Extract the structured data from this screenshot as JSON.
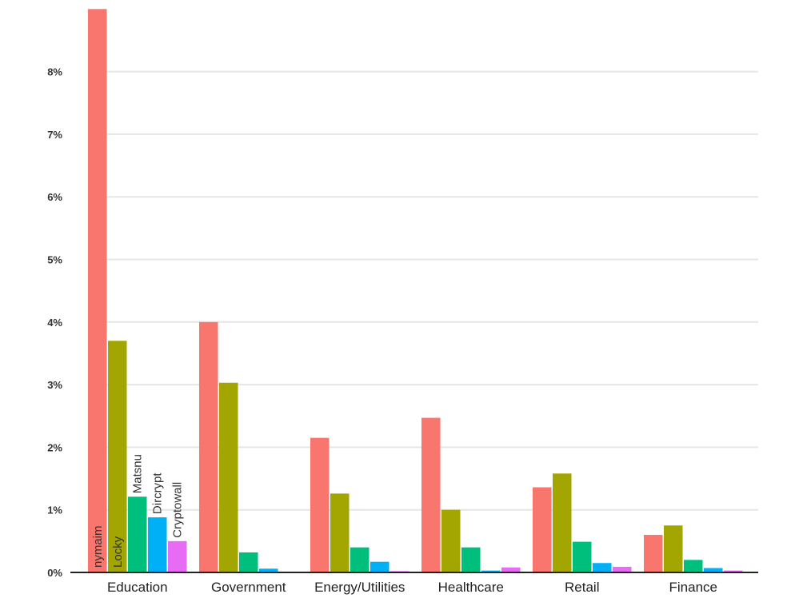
{
  "chart_data": {
    "type": "bar",
    "categories": [
      "Education",
      "Government",
      "Energy/Utilities",
      "Healthcare",
      "Retail",
      "Finance"
    ],
    "yticks": [
      "0%",
      "1%",
      "2%",
      "3%",
      "4%",
      "5%",
      "6%",
      "7%",
      "8%"
    ],
    "ylim": [
      0,
      9
    ],
    "grid": true,
    "series": [
      {
        "name": "nymaim",
        "color": "#F8766D",
        "values": [
          9.0,
          4.0,
          2.15,
          2.47,
          1.36,
          0.6
        ]
      },
      {
        "name": "Locky",
        "color": "#A3A500",
        "values": [
          3.7,
          3.03,
          1.26,
          1.0,
          1.58,
          0.75
        ]
      },
      {
        "name": "Matsnu",
        "color": "#00BF7D",
        "values": [
          1.21,
          0.32,
          0.4,
          0.4,
          0.49,
          0.2
        ]
      },
      {
        "name": "Dircrypt",
        "color": "#00B0F6",
        "values": [
          0.88,
          0.06,
          0.17,
          0.03,
          0.15,
          0.07
        ]
      },
      {
        "name": "Cryptowall",
        "color": "#E76BF3",
        "values": [
          0.5,
          0.0,
          0.02,
          0.08,
          0.09,
          0.03
        ]
      }
    ]
  }
}
